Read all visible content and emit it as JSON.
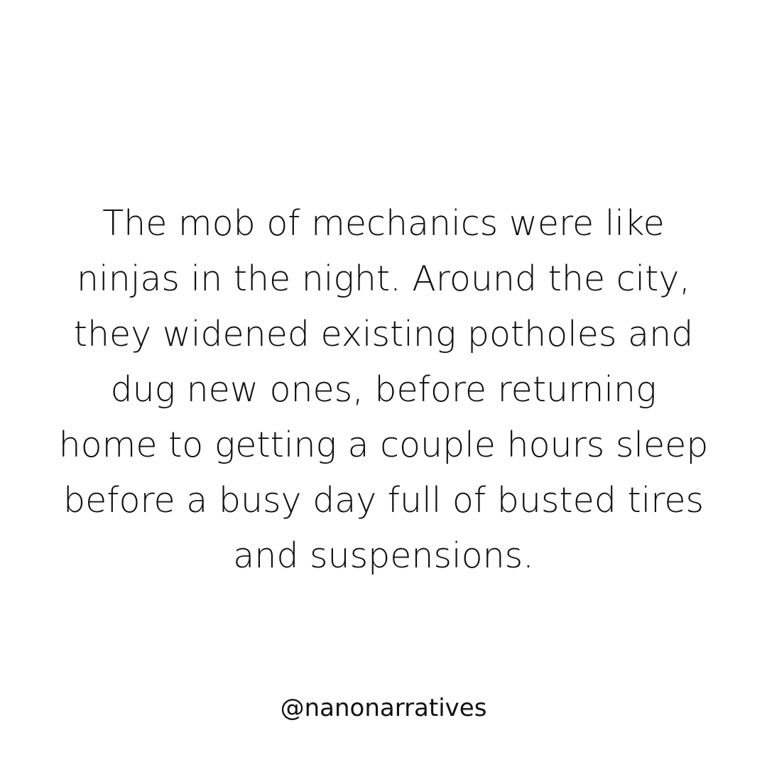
{
  "story": {
    "lines": [
      "The mob of mechanics were like",
      "ninjas in the night. Around the city,",
      "they widened existing potholes and",
      "dug new ones, before returning",
      "home to getting a couple hours sleep",
      "before a busy day full of busted tires",
      "and suspensions."
    ]
  },
  "footer": {
    "handle": "@nanonarratives"
  },
  "colors": {
    "background": "#ffffff",
    "text": "#111111"
  }
}
